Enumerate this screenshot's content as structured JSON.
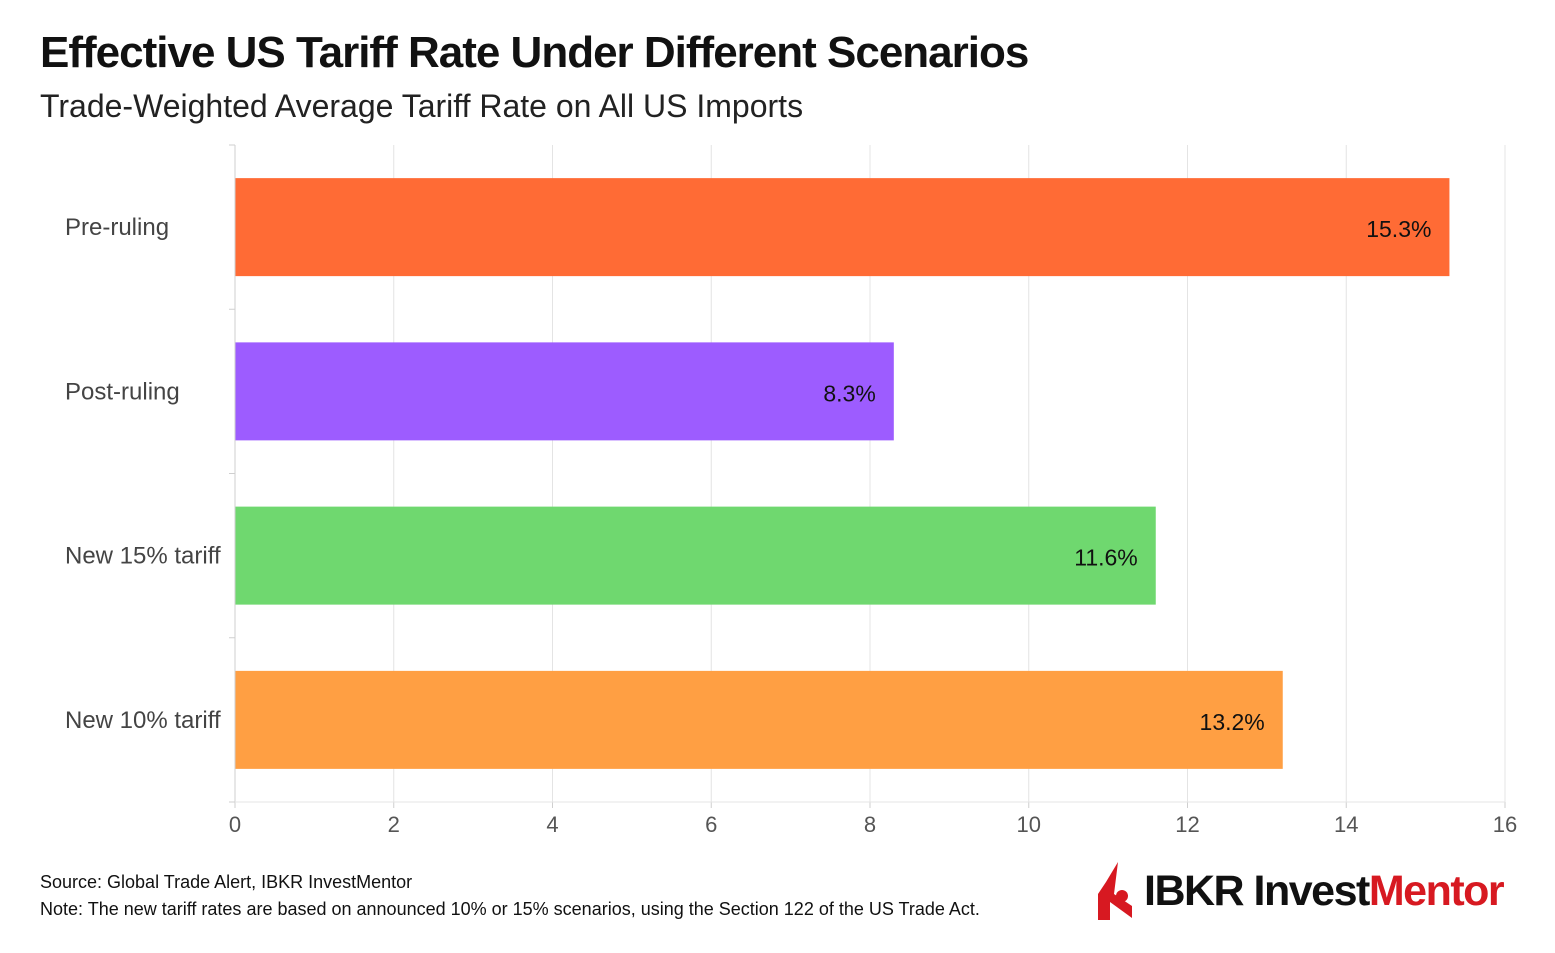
{
  "title": "Effective US Tariff Rate Under Different Scenarios",
  "subtitle": "Trade-Weighted Average Tariff Rate on All US Imports",
  "footer": {
    "source": "Source: Global Trade Alert, IBKR InvestMentor",
    "note": "Note: The new tariff rates are based on announced 10% or 15% scenarios, using the Section 122 of the US Trade Act."
  },
  "logo": {
    "text_main": "IBKR Invest",
    "text_accent": "Mentor",
    "icon": "ibkr-flame-logo-icon",
    "accent_color": "#d71921"
  },
  "chart_data": {
    "type": "bar",
    "orientation": "horizontal",
    "categories": [
      "Pre-ruling",
      "Post-ruling",
      "New 15% tariff",
      "New 10% tariff"
    ],
    "values": [
      15.3,
      8.3,
      11.6,
      13.2
    ],
    "data_labels": [
      "15.3%",
      "8.3%",
      "11.6%",
      "13.2%"
    ],
    "colors": [
      "#ff6b35",
      "#9d5cff",
      "#6fd86f",
      "#ff9f43"
    ],
    "xlim": [
      0,
      16
    ],
    "xticks": [
      0,
      2,
      4,
      6,
      8,
      10,
      12,
      14,
      16
    ],
    "xlabel": "",
    "ylabel": "",
    "grid": "vertical",
    "legend": "none"
  }
}
